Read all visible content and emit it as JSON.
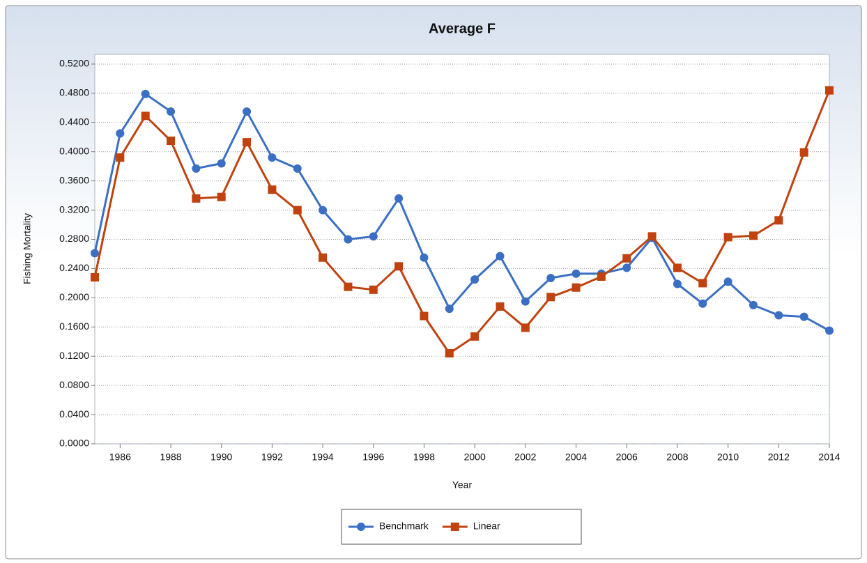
{
  "chart_data": {
    "type": "line",
    "title": "Average F",
    "x_label": "Year",
    "y_label": "Fishing Mortality",
    "x": [
      1985,
      1986,
      1987,
      1988,
      1989,
      1990,
      1991,
      1992,
      1993,
      1994,
      1995,
      1996,
      1997,
      1998,
      1999,
      2000,
      2001,
      2002,
      2003,
      2004,
      2005,
      2006,
      2007,
      2008,
      2009,
      2010,
      2011,
      2012,
      2013,
      2014
    ],
    "series": [
      {
        "name": "Benchmark",
        "color": "#3a6fc4",
        "marker": "circle",
        "values": [
          0.261,
          0.425,
          0.479,
          0.455,
          0.377,
          0.384,
          0.455,
          0.392,
          0.377,
          0.32,
          0.28,
          0.284,
          0.336,
          0.255,
          0.185,
          0.225,
          0.257,
          0.195,
          0.227,
          0.233,
          0.233,
          0.241,
          0.282,
          0.219,
          0.192,
          0.222,
          0.19,
          0.176,
          0.174,
          0.155
        ]
      },
      {
        "name": "Linear",
        "color": "#c0420e",
        "marker": "square",
        "values": [
          0.228,
          0.392,
          0.449,
          0.415,
          0.336,
          0.338,
          0.413,
          0.348,
          0.32,
          0.255,
          0.215,
          0.211,
          0.243,
          0.175,
          0.124,
          0.147,
          0.188,
          0.159,
          0.201,
          0.214,
          0.229,
          0.254,
          0.284,
          0.241,
          0.22,
          0.283,
          0.285,
          0.306,
          0.399,
          0.484
        ]
      }
    ],
    "xlim": [
      1985,
      2014
    ],
    "xticks": [
      1986,
      1988,
      1990,
      1992,
      1994,
      1996,
      1998,
      2000,
      2002,
      2004,
      2006,
      2008,
      2010,
      2012,
      2014
    ],
    "ylim": [
      0,
      0.5333
    ],
    "yticks": [
      {
        "value": 0,
        "label": "0.0000"
      },
      {
        "value": 0.04,
        "label": "0.0400"
      },
      {
        "value": 0.08,
        "label": "0.0800"
      },
      {
        "value": 0.12,
        "label": "0.1200"
      },
      {
        "value": 0.16,
        "label": "0.1600"
      },
      {
        "value": 0.2,
        "label": "0.2000"
      },
      {
        "value": 0.24,
        "label": "0.2400"
      },
      {
        "value": 0.28,
        "label": "0.2800"
      },
      {
        "value": 0.32,
        "label": "0.3200"
      },
      {
        "value": 0.36,
        "label": "0.3600"
      },
      {
        "value": 0.4,
        "label": "0.4000"
      },
      {
        "value": 0.44,
        "label": "0.4400"
      },
      {
        "value": 0.48,
        "label": "0.4800"
      },
      {
        "value": 0.52,
        "label": "0.5200"
      }
    ],
    "grid": true,
    "legend": "bottom"
  }
}
